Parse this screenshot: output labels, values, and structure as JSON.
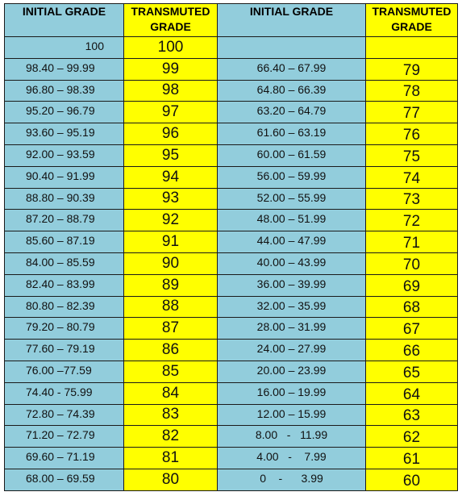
{
  "headers": [
    "INITIAL GRADE",
    "TRANSMUTED GRADE",
    "INITIAL GRADE",
    "TRANSMUTED GRADE"
  ],
  "first_row": {
    "initial": "100",
    "transmuted": "100",
    "initial2": "",
    "transmuted2": ""
  },
  "rows": [
    {
      "left_initial": "98.40 – 99.99",
      "left_grade": "99",
      "right_initial": "66.40 – 67.99",
      "right_grade": "79"
    },
    {
      "left_initial": "96.80 – 98.39",
      "left_grade": "98",
      "right_initial": "64.80 – 66.39",
      "right_grade": "78"
    },
    {
      "left_initial": "95.20 – 96.79",
      "left_grade": "97",
      "right_initial": "63.20 – 64.79",
      "right_grade": "77"
    },
    {
      "left_initial": "93.60 – 95.19",
      "left_grade": "96",
      "right_initial": "61.60 – 63.19",
      "right_grade": "76"
    },
    {
      "left_initial": "92.00 – 93.59",
      "left_grade": "95",
      "right_initial": "60.00 – 61.59",
      "right_grade": "75"
    },
    {
      "left_initial": "90.40 – 91.99",
      "left_grade": "94",
      "right_initial": "56.00 – 59.99",
      "right_grade": "74"
    },
    {
      "left_initial": "88.80 – 90.39",
      "left_grade": "93",
      "right_initial": "52.00 – 55.99",
      "right_grade": "73"
    },
    {
      "left_initial": "87.20 – 88.79",
      "left_grade": "92",
      "right_initial": "48.00 – 51.99",
      "right_grade": "72"
    },
    {
      "left_initial": "85.60 – 87.19",
      "left_grade": "91",
      "right_initial": "44.00 – 47.99",
      "right_grade": "71"
    },
    {
      "left_initial": "84.00 – 85.59",
      "left_grade": "90",
      "right_initial": "40.00 – 43.99",
      "right_grade": "70"
    },
    {
      "left_initial": "82.40 – 83.99",
      "left_grade": "89",
      "right_initial": "36.00 – 39.99",
      "right_grade": "69"
    },
    {
      "left_initial": "80.80 – 82.39",
      "left_grade": "88",
      "right_initial": "32.00 – 35.99",
      "right_grade": "68"
    },
    {
      "left_initial": "79.20 – 80.79",
      "left_grade": "87",
      "right_initial": "28.00 – 31.99",
      "right_grade": "67"
    },
    {
      "left_initial": "77.60 – 79.19",
      "left_grade": "86",
      "right_initial": "24.00 – 27.99",
      "right_grade": "66"
    },
    {
      "left_initial": "76.00 –77.59",
      "left_grade": "85",
      "right_initial": "20.00 – 23.99",
      "right_grade": "65"
    },
    {
      "left_initial": "74.40 - 75.99",
      "left_grade": "84",
      "right_initial": "16.00 – 19.99",
      "right_grade": "64"
    },
    {
      "left_initial": "72.80 – 74.39",
      "left_grade": "83",
      "right_initial": "12.00 – 15.99",
      "right_grade": "63"
    },
    {
      "left_initial": "71.20 – 72.79",
      "left_grade": "82",
      "right_initial": "8.00   -   11.99",
      "right_grade": "62"
    },
    {
      "left_initial": "69.60 – 71.19",
      "left_grade": "81",
      "right_initial": "4.00   -    7.99",
      "right_grade": "61"
    },
    {
      "left_initial": "68.00 – 69.59",
      "left_grade": "80",
      "right_initial": "0    -      3.99",
      "right_grade": "60"
    }
  ]
}
